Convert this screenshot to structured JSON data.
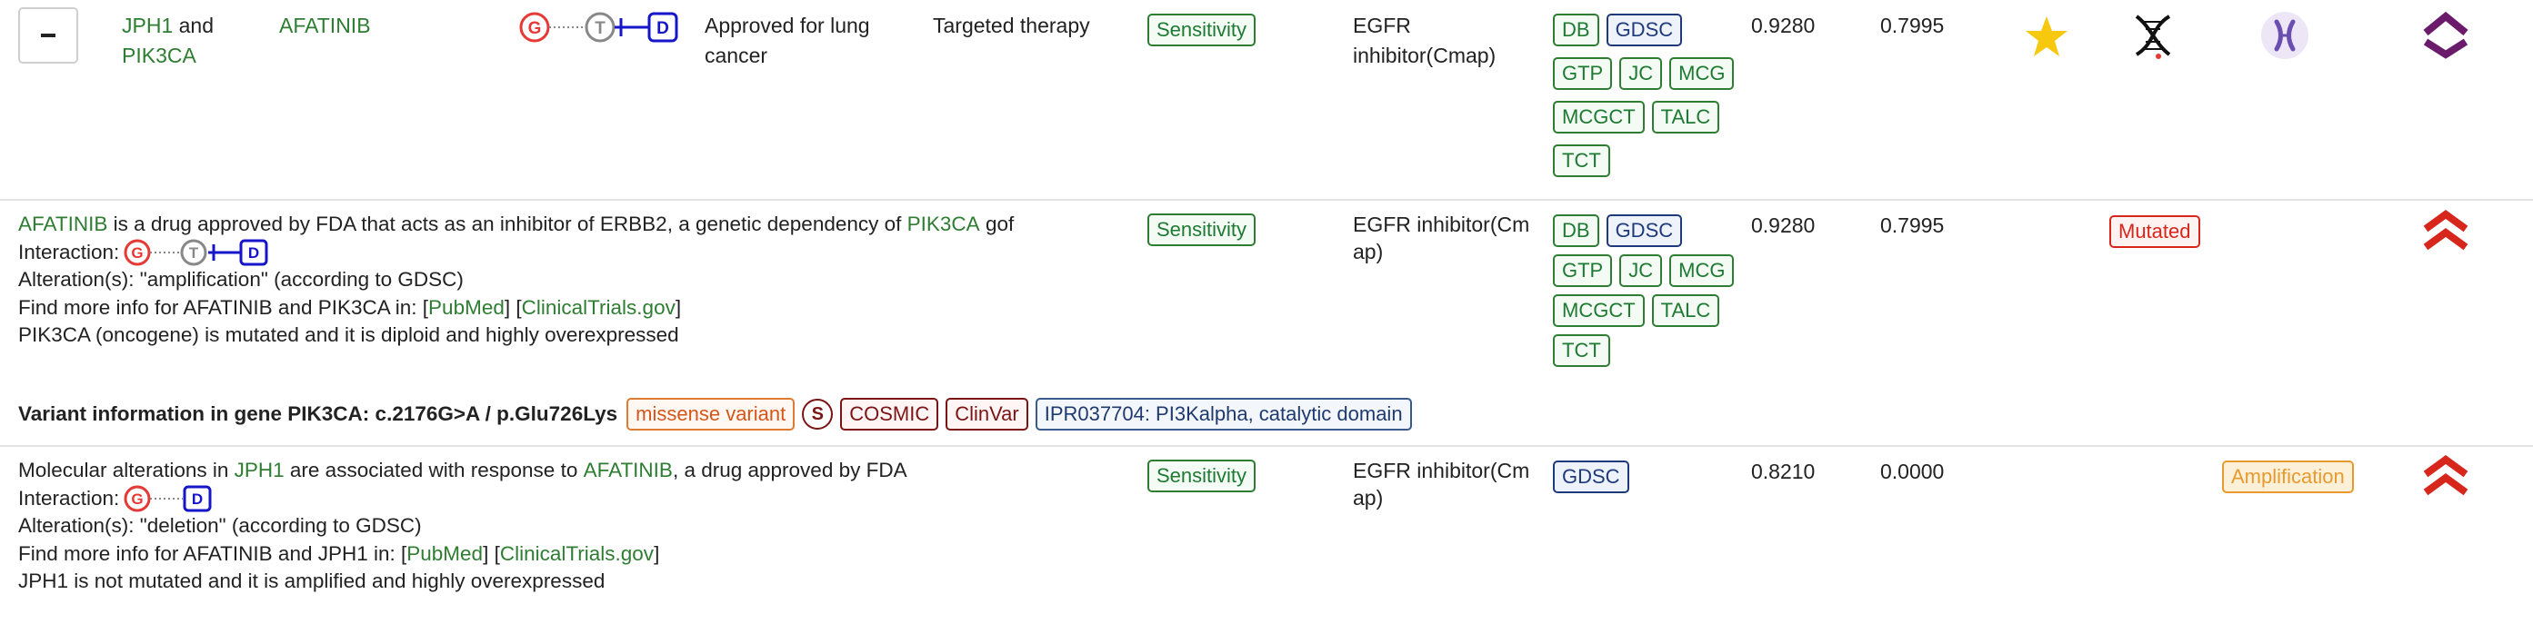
{
  "row1": {
    "genes": [
      "JPH1",
      "and",
      "PIK3CA"
    ],
    "drug": "AFATINIB",
    "status": [
      "Approved for lung",
      "cancer"
    ],
    "therapy": "Targeted therapy",
    "response": "Sensitivity",
    "family": [
      "EGFR",
      "inhibitor(Cmap)"
    ],
    "sources_rows": [
      [
        "DB",
        "GDSC"
      ],
      [
        "GTP",
        "JC",
        "MCG"
      ],
      [
        "MCGCT",
        "TALC"
      ],
      [
        "TCT"
      ]
    ],
    "score1": "0.9280",
    "score2": "0.7995",
    "icons": [
      "star-icon",
      "dna-icon",
      "chromosome-icon",
      "chevron-up-icon"
    ],
    "colors": {
      "star": "#f6c90e",
      "chevron": "#6a1b6a",
      "node_g": "#e53935",
      "node_t": "#888888",
      "node_d": "#1515c9"
    }
  },
  "row2": {
    "line1": {
      "drug": "AFATINIB",
      "mid": " is a drug approved by FDA that acts as an inhibitor of ERBB2, a genetic dependency of ",
      "gene": "PIK3CA",
      "tail": " gof"
    },
    "interaction_label": "Interaction:",
    "alteration": "Alteration(s): \"amplification\" (according to GDSC)",
    "findmore": {
      "prefix": "Find more info for AFATINIB and PIK3CA in: [",
      "pubmed": "PubMed",
      "mid": "] [",
      "ct": "ClinicalTrials.gov",
      "suffix": "]"
    },
    "summary": "PIK3CA (oncogene) is mutated and it is diploid and highly overexpressed",
    "response": "Sensitivity",
    "family": [
      "EGFR inhibitor(Cm",
      "ap)"
    ],
    "sources_rows": [
      [
        "DB",
        "GDSC"
      ],
      [
        "GTP",
        "JC",
        "MCG"
      ],
      [
        "MCGCT",
        "TALC"
      ],
      [
        "TCT"
      ]
    ],
    "score1": "0.9280",
    "score2": "0.7995",
    "status_badge": "Mutated",
    "chevron_color": "#d7261c"
  },
  "variant": {
    "label": "Variant information in gene PIK3CA: c.2176G>A / p.Glu726Lys",
    "consequence": "missense variant",
    "s_label": "S",
    "cosmic": "COSMIC",
    "clinvar": "ClinVar",
    "domain": "IPR037704: PI3Kalpha, catalytic domain"
  },
  "row3": {
    "line1": {
      "pre": "Molecular alterations in ",
      "gene": "JPH1",
      "mid": " are associated with response to ",
      "drug": "AFATINIB",
      "tail": ", a drug approved by FDA"
    },
    "interaction_label": "Interaction:",
    "alteration": "Alteration(s): \"deletion\" (according to GDSC)",
    "findmore": {
      "prefix": "Find more info for AFATINIB and JPH1 in: [",
      "pubmed": "PubMed",
      "mid": "] [",
      "ct": "ClinicalTrials.gov",
      "suffix": "]"
    },
    "summary": "JPH1 is not mutated and it is amplified and highly overexpressed",
    "response": "Sensitivity",
    "family": [
      "EGFR inhibitor(Cm",
      "ap)"
    ],
    "sources_rows": [
      [
        "GDSC"
      ]
    ],
    "score1": "0.8210",
    "score2": "0.0000",
    "status_badge": "Amplification",
    "chevron_color": "#d7261c"
  },
  "nodes": {
    "g": "G",
    "t": "T",
    "d": "D"
  }
}
